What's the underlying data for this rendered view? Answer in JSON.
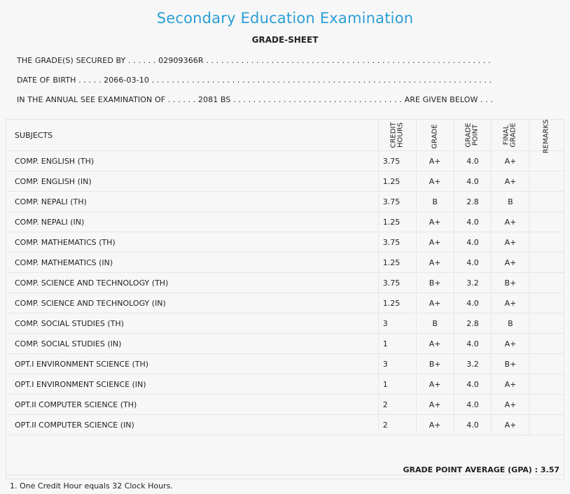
{
  "header": {
    "title": "Secondary Education Examination",
    "subtitle": "GRADE-SHEET"
  },
  "info": {
    "line1": "THE GRADE(S) SECURED BY . . . . . . 02909366R . . . . . . . . . . . . . . . . . . . . . . . . . . . . . . . . . . . . . . . . . . . . . . . . . . . . . . . . .",
    "line2": "DATE OF BIRTH . . . . . 2066-03-10 . . . . . . . . . . . . . . . . . . . . . . . . . . . . . . . . . . . . . . . . . . . . . . . . . . . . . . . . . . . . . . . . . . . .",
    "line3": "IN THE ANNUAL SEE EXAMINATION OF . . . . . . 2081 BS . . . . . . . . . . . . . . . . . . . . . . . . . . . . . . . . . . ARE GIVEN BELOW . . ."
  },
  "table": {
    "headers": {
      "subjects": "SUBJECTS",
      "credit": "CREDIT",
      "hours": "HOURS",
      "grade": "GRADE",
      "grade2": "GRADE",
      "point": "POINT",
      "final": "FINAL",
      "final_grade": "GRADE",
      "remarks": "REMARKS"
    },
    "rows": [
      {
        "subject": "COMP. ENGLISH (TH)",
        "credit": "3.75",
        "grade": "A+",
        "point": "4.0",
        "final": "A+"
      },
      {
        "subject": "COMP. ENGLISH (IN)",
        "credit": "1.25",
        "grade": "A+",
        "point": "4.0",
        "final": "A+"
      },
      {
        "subject": "COMP. NEPALI (TH)",
        "credit": "3.75",
        "grade": "B",
        "point": "2.8",
        "final": "B"
      },
      {
        "subject": "COMP. NEPALI (IN)",
        "credit": "1.25",
        "grade": "A+",
        "point": "4.0",
        "final": "A+"
      },
      {
        "subject": "COMP. MATHEMATICS (TH)",
        "credit": "3.75",
        "grade": "A+",
        "point": "4.0",
        "final": "A+"
      },
      {
        "subject": "COMP. MATHEMATICS (IN)",
        "credit": "1.25",
        "grade": "A+",
        "point": "4.0",
        "final": "A+"
      },
      {
        "subject": "COMP. SCIENCE AND TECHNOLOGY (TH)",
        "credit": "3.75",
        "grade": "B+",
        "point": "3.2",
        "final": "B+"
      },
      {
        "subject": "COMP. SCIENCE AND TECHNOLOGY (IN)",
        "credit": "1.25",
        "grade": "A+",
        "point": "4.0",
        "final": "A+"
      },
      {
        "subject": "COMP. SOCIAL STUDIES (TH)",
        "credit": "3",
        "grade": "B",
        "point": "2.8",
        "final": "B"
      },
      {
        "subject": "COMP. SOCIAL STUDIES (IN)",
        "credit": "1",
        "grade": "A+",
        "point": "4.0",
        "final": "A+"
      },
      {
        "subject": "OPT.I ENVIRONMENT SCIENCE (TH)",
        "credit": "3",
        "grade": "B+",
        "point": "3.2",
        "final": "B+"
      },
      {
        "subject": "OPT.I ENVIRONMENT SCIENCE (IN)",
        "credit": "1",
        "grade": "A+",
        "point": "4.0",
        "final": "A+"
      },
      {
        "subject": "OPT.II COMPUTER SCIENCE (TH)",
        "credit": "2",
        "grade": "A+",
        "point": "4.0",
        "final": "A+"
      },
      {
        "subject": "OPT.II COMPUTER SCIENCE (IN)",
        "credit": "2",
        "grade": "A+",
        "point": "4.0",
        "final": "A+"
      }
    ],
    "gpa": "GRADE POINT AVERAGE (GPA) : 3.57"
  },
  "footer": {
    "note": "1. One Credit Hour equals 32 Clock Hours."
  }
}
